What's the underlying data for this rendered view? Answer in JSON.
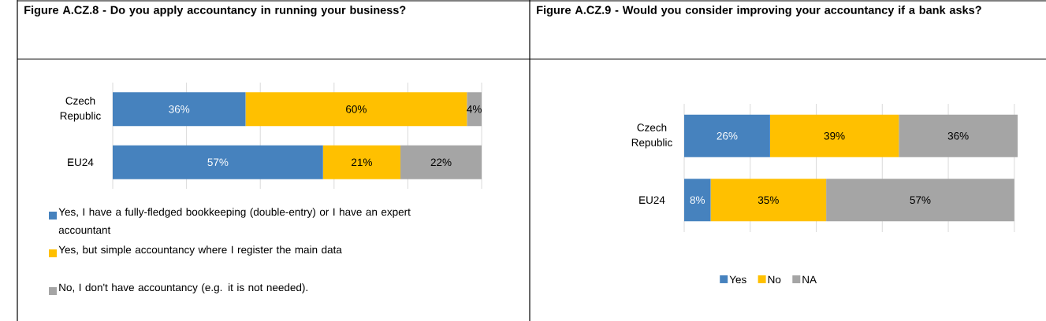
{
  "chart_data": [
    {
      "type": "bar",
      "orientation": "horizontal",
      "stacked": true,
      "title": "Figure A.CZ.8 - Do you apply accountancy in running your business?",
      "categories": [
        "Czech Republic",
        "EU24"
      ],
      "series": [
        {
          "name": "Yes, I have a fully-fledged bookkeeping (double-entry) or I have an expert accountant",
          "color": "#4682be",
          "values": [
            36,
            57
          ],
          "value_labels": [
            "36%",
            "57%"
          ]
        },
        {
          "name": "Yes, but simple accountancy where I register the main data",
          "color": "#ffc000",
          "values": [
            60,
            21
          ],
          "value_labels": [
            "60%",
            "21%"
          ]
        },
        {
          "name": "No, I don't have accountancy (e.g. it is not needed).",
          "color": "#a5a5a5",
          "values": [
            4,
            22
          ],
          "value_labels": [
            "4%",
            "22%"
          ]
        }
      ],
      "xlim": [
        0,
        100
      ],
      "xticks": [
        {
          "value": 0,
          "label": null
        },
        {
          "value": 20,
          "label": null
        },
        {
          "value": 40,
          "label": null
        },
        {
          "value": 60,
          "label": null
        },
        {
          "value": 80,
          "label": null
        },
        {
          "value": 100,
          "label": null
        }
      ],
      "grid": "x",
      "legend": "bottom",
      "tick_labels": "y"
    },
    {
      "type": "bar",
      "orientation": "horizontal",
      "stacked": true,
      "title": "Figure A.CZ.9 - Would you consider improving your accountancy if a bank asks?",
      "categories": [
        "Czech Republic",
        "EU24"
      ],
      "series": [
        {
          "name": "Yes",
          "color": "#4682be",
          "values": [
            26,
            8
          ],
          "value_labels": [
            "26%",
            "8%"
          ]
        },
        {
          "name": "No",
          "color": "#ffc000",
          "values": [
            39,
            35
          ],
          "value_labels": [
            "39%",
            "35%"
          ]
        },
        {
          "name": "NA",
          "color": "#a5a5a5",
          "values": [
            36,
            57
          ],
          "value_labels": [
            "36%",
            "57%"
          ]
        }
      ],
      "xlim": [
        0,
        101
      ],
      "xticks": [
        {
          "value": 0,
          "label": null
        },
        {
          "value": 20,
          "label": null
        },
        {
          "value": 40,
          "label": null
        },
        {
          "value": 60,
          "label": null
        },
        {
          "value": 80,
          "label": null
        },
        {
          "value": 100,
          "label": null
        }
      ],
      "grid": "x",
      "legend": "bottom",
      "tick_labels": "y"
    }
  ]
}
